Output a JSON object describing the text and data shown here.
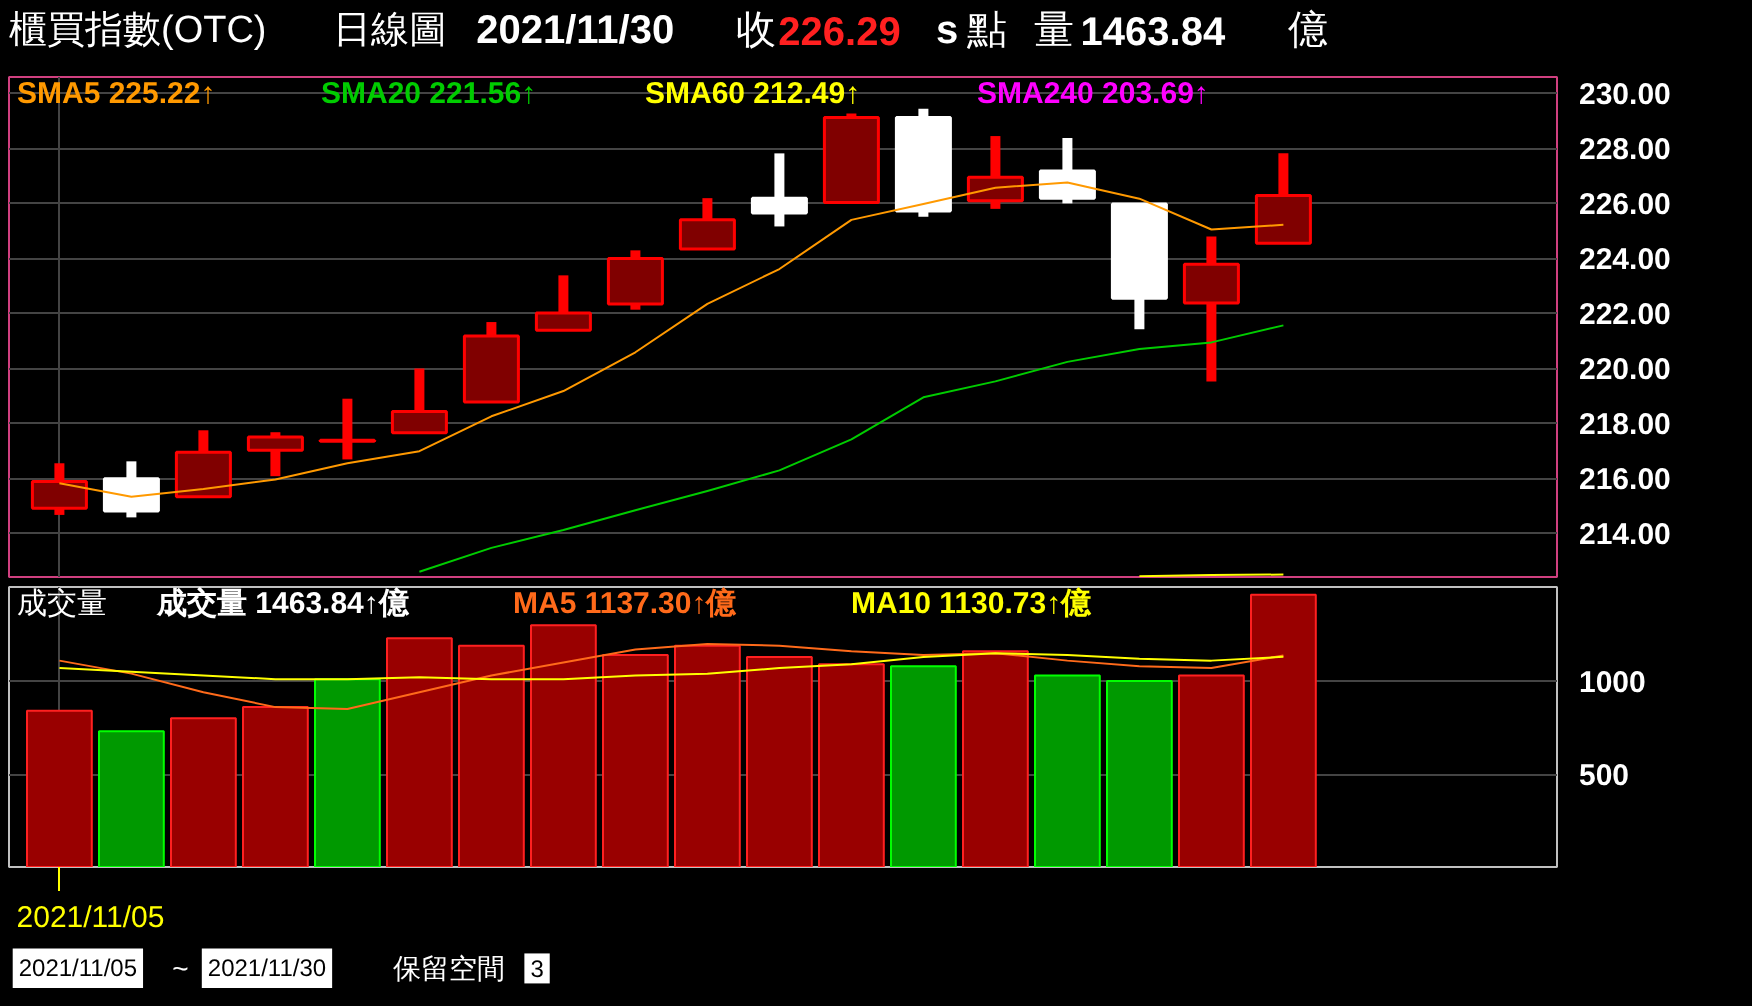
{
  "chart_data": [
    {
      "type": "candlestick",
      "title": "櫃買指數(OTC)",
      "subtitle": "日線圖",
      "annotations": [
        "2021/11/30",
        "收",
        "226.29",
        "s",
        "點",
        "量",
        "1463.84",
        "億"
      ],
      "categories": [
        null,
        null,
        null,
        null,
        null,
        null,
        null,
        null,
        null,
        null,
        null,
        null,
        null,
        null,
        null,
        null,
        null,
        null
      ],
      "ohlc": [
        [
          214.9,
          216.54,
          214.66,
          215.88
        ],
        [
          215.98,
          216.61,
          214.57,
          214.8
        ],
        [
          215.32,
          217.74,
          215.32,
          216.94
        ],
        [
          217.01,
          217.67,
          216.07,
          217.5
        ],
        [
          217.34,
          218.89,
          216.68,
          217.38
        ],
        [
          217.65,
          219.99,
          217.65,
          218.42
        ],
        [
          218.77,
          221.68,
          218.77,
          221.17
        ],
        [
          221.38,
          223.38,
          221.38,
          222.01
        ],
        [
          222.34,
          224.29,
          222.13,
          223.99
        ],
        [
          224.34,
          226.19,
          224.34,
          225.4
        ],
        [
          226.19,
          227.82,
          225.16,
          225.65
        ],
        [
          226.03,
          229.27,
          226.03,
          229.13
        ],
        [
          229.13,
          229.44,
          225.51,
          225.72
        ],
        [
          226.1,
          228.45,
          225.8,
          226.95
        ],
        [
          227.18,
          228.38,
          226.0,
          226.19
        ],
        [
          225.98,
          225.98,
          221.42,
          222.55
        ],
        [
          222.37,
          224.79,
          219.52,
          223.78
        ],
        [
          224.55,
          227.82,
          224.55,
          226.29
        ]
      ],
      "colors": [
        "#800000",
        "#ffffff",
        "#800000",
        "#800000",
        "#800000",
        "#800000",
        "#800000",
        "#800000",
        "#800000",
        "#800000",
        "#ffffff",
        "#800000",
        "#ffffff",
        "#800000",
        "#ffffff",
        "#ffffff",
        "#800000",
        "#800000"
      ],
      "series": [
        {
          "type": "line",
          "name": "SMA5 225.22↑",
          "color": "#ff9900",
          "values": [
            215.81,
            215.32,
            215.6,
            215.95,
            216.54,
            216.98,
            218.25,
            219.17,
            220.58,
            222.34,
            223.61,
            225.4,
            225.98,
            226.57,
            226.76,
            226.17,
            225.05,
            225.22
          ]
        },
        {
          "type": "line",
          "name": "SMA20 221.56↑",
          "color": "#00cc00",
          "values": [
            null,
            null,
            null,
            null,
            null,
            212.59,
            213.46,
            214.11,
            214.83,
            215.53,
            216.28,
            217.41,
            218.94,
            219.52,
            220.23,
            220.7,
            220.94,
            221.56
          ]
        },
        {
          "type": "line",
          "name": "SMA60 212.49↑",
          "color": "#ffff00",
          "values": [
            null,
            null,
            null,
            null,
            null,
            null,
            null,
            null,
            null,
            null,
            null,
            null,
            null,
            null,
            null,
            212.43,
            212.47,
            212.49
          ]
        },
        {
          "type": "line",
          "name": "SMA240 203.69↑",
          "color": "#ff00ff",
          "values": [
            null,
            null,
            null,
            null,
            null,
            null,
            null,
            null,
            null,
            null,
            null,
            null,
            null,
            null,
            null,
            null,
            null,
            null
          ]
        }
      ],
      "ylim": [
        212.4,
        230.6
      ],
      "yticks": [
        {
          "value": 214,
          "label": "214.00"
        },
        {
          "value": 216,
          "label": "216.00"
        },
        {
          "value": 218,
          "label": "218.00"
        },
        {
          "value": 220,
          "label": "220.00"
        },
        {
          "value": 222,
          "label": "222.00"
        },
        {
          "value": 224,
          "label": "224.00"
        },
        {
          "value": 226,
          "label": "226.00"
        },
        {
          "value": 228,
          "label": "228.00"
        },
        {
          "value": 230,
          "label": "230.00"
        }
      ],
      "grid": true,
      "legend": "top left",
      "tick_labels": "y"
    },
    {
      "type": "bar",
      "legend_title": "成交量",
      "categories": [
        "2021/11/05",
        null,
        null,
        null,
        null,
        null,
        null,
        null,
        null,
        null,
        null,
        null,
        null,
        null,
        null,
        null,
        null,
        null
      ],
      "series": [
        {
          "name": "成交量 1463.84↑億",
          "colors": [
            "#990000",
            "#009900",
            "#990000",
            "#990000",
            "#009900",
            "#990000",
            "#990000",
            "#990000",
            "#990000",
            "#990000",
            "#990000",
            "#990000",
            "#009900",
            "#990000",
            "#009900",
            "#009900",
            "#990000",
            "#990000"
          ],
          "values": [
            840,
            730,
            800,
            860,
            1010,
            1230,
            1190,
            1300,
            1140,
            1190,
            1130,
            1090,
            1080,
            1160,
            1030,
            1000,
            1030,
            1463.84
          ]
        },
        {
          "type": "line",
          "name": "MA5 1137.30↑億",
          "color": "#ff6a1a",
          "values": [
            1110,
            1040,
            940,
            860,
            850,
            940,
            1030,
            1100,
            1170,
            1200,
            1190,
            1160,
            1140,
            1150,
            1110,
            1080,
            1070,
            1137.3
          ]
        },
        {
          "type": "line",
          "name": "MA10 1130.73↑億",
          "color": "#ffff00",
          "values": [
            1070,
            1050,
            1030,
            1010,
            1010,
            1020,
            1010,
            1010,
            1030,
            1040,
            1070,
            1090,
            1130,
            1150,
            1140,
            1120,
            1110,
            1130.73
          ]
        }
      ],
      "ylim": [
        0,
        1506
      ],
      "yticks": [
        500,
        1000
      ],
      "grid": true,
      "legend": "top left",
      "annotations": [
        "2021/11/05",
        "~",
        "2021/11/30",
        "保留空間",
        "3"
      ]
    }
  ]
}
